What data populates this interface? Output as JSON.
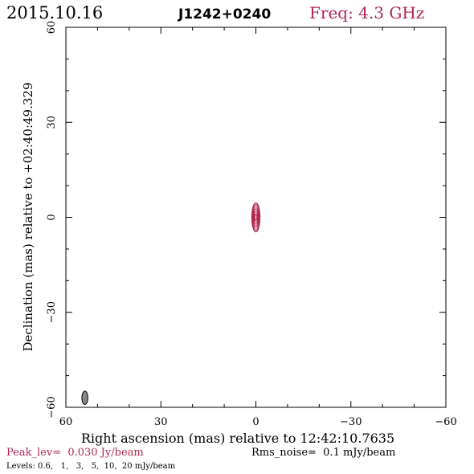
{
  "header": {
    "date": "2015.10.16",
    "source": "J1242+0240",
    "freq": "Freq: 4.3 GHz"
  },
  "footer": {
    "peak": "Peak_lev=  0.030 Jy/beam",
    "rms": "Rms_noise=  0.1 mJy/beam",
    "levels": "Levels: 0.6,   1,   3,   5,  10,  20 mJy/beam"
  },
  "colors": {
    "accent": "#b0284f",
    "beam_fill": "#888888",
    "ink": "#000000"
  },
  "chart_data": {
    "type": "contour",
    "xlabel": "Right ascension (mas) relative to 12:42:10.7635",
    "ylabel": "Declination (mas) relative to +02:40:49.329",
    "xlim": [
      60,
      -60
    ],
    "ylim": [
      -60,
      60
    ],
    "xticks": [
      60,
      30,
      0,
      -30,
      -60
    ],
    "yticks": [
      -60,
      -30,
      0,
      30,
      60
    ],
    "xtick_labels": [
      "60",
      "30",
      "0",
      "−30",
      "−60"
    ],
    "ytick_labels": [
      "−60",
      "−30",
      "0",
      "30",
      "60"
    ],
    "contour_levels_mJy": [
      0.6,
      1,
      3,
      5,
      10,
      20
    ],
    "source_center": [
      0,
      0
    ],
    "contours": [
      {
        "level": 0.6,
        "ra_radius": 1.3,
        "dec_radius": 4.6
      },
      {
        "level": 1,
        "ra_radius": 1.15,
        "dec_radius": 4.1
      },
      {
        "level": 3,
        "ra_radius": 0.95,
        "dec_radius": 3.4
      },
      {
        "level": 5,
        "ra_radius": 0.75,
        "dec_radius": 2.7
      },
      {
        "level": 10,
        "ra_radius": 0.55,
        "dec_radius": 1.9
      },
      {
        "level": 20,
        "ra_radius": 0.3,
        "dec_radius": 1.0
      }
    ],
    "beam": {
      "center": [
        54,
        -57
      ],
      "ra_radius": 0.95,
      "dec_radius": 2.1
    }
  }
}
